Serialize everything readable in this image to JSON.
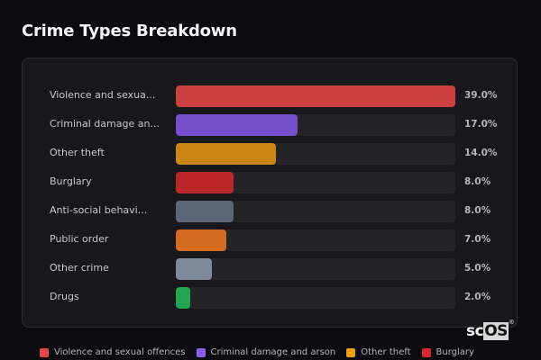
{
  "header": {
    "title": "Crime Types Breakdown"
  },
  "rows": [
    {
      "label": "Violence and sexua...",
      "value_label": "39.0%",
      "color": "#cc4040"
    },
    {
      "label": "Criminal damage an...",
      "value_label": "17.0%",
      "color": "#7650cc"
    },
    {
      "label": "Other theft",
      "value_label": "14.0%",
      "color": "#cc8614"
    },
    {
      "label": "Burglary",
      "value_label": "8.0%",
      "color": "#bb2727"
    },
    {
      "label": "Anti-social behavi...",
      "value_label": "8.0%",
      "color": "#5c6677"
    },
    {
      "label": "Public order",
      "value_label": "7.0%",
      "color": "#d66a1e"
    },
    {
      "label": "Other crime",
      "value_label": "5.0%",
      "color": "#7f8a9b"
    },
    {
      "label": "Drugs",
      "value_label": "2.0%",
      "color": "#1fa64f"
    }
  ],
  "legend": [
    {
      "label": "Violence and sexual offences",
      "color": "#e04848"
    },
    {
      "label": "Criminal damage and arson",
      "color": "#8a5cf0"
    },
    {
      "label": "Other theft",
      "color": "#f0a010"
    },
    {
      "label": "Burglary",
      "color": "#d62a2a"
    }
  ],
  "watermark": {
    "prefix": "sc",
    "boxed": "OS",
    "mark": "®"
  },
  "chart_data": {
    "type": "bar",
    "orientation": "horizontal",
    "title": "Crime Types Breakdown",
    "categories": [
      "Violence and sexual offences",
      "Criminal damage and arson",
      "Other theft",
      "Burglary",
      "Anti-social behaviour",
      "Public order",
      "Other crime",
      "Drugs"
    ],
    "values": [
      39.0,
      17.0,
      14.0,
      8.0,
      8.0,
      7.0,
      5.0,
      2.0
    ],
    "unit": "%",
    "xlabel": "",
    "ylabel": "",
    "xlim": [
      0,
      39
    ],
    "grid": false,
    "legend_position": "bottom",
    "colors": [
      "#cc4040",
      "#7650cc",
      "#cc8614",
      "#bb2727",
      "#5c6677",
      "#d66a1e",
      "#7f8a9b",
      "#1fa64f"
    ]
  }
}
